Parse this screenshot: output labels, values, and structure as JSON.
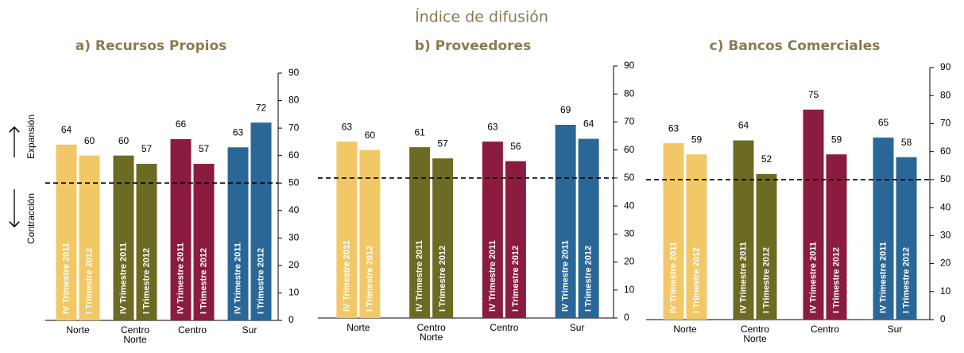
{
  "subtitle": "Índice de difusión",
  "annotations": {
    "up": "Expansión",
    "down": "Contracción"
  },
  "chart_data": [
    {
      "type": "bar",
      "title": "a) Recursos Propios",
      "categories": [
        "Norte",
        "Centro Norte",
        "Centro",
        "Sur"
      ],
      "colors": [
        "#f2c867",
        "#6b6b23",
        "#8c1c3f",
        "#2a6797"
      ],
      "series": [
        {
          "name": "IV Trimestre 2011",
          "values": [
            64,
            60,
            66,
            63
          ]
        },
        {
          "name": "I Trimestre 2012",
          "values": [
            60,
            57,
            57,
            72
          ]
        }
      ],
      "ylim": [
        0,
        90
      ],
      "yticks": [
        0,
        10,
        20,
        30,
        40,
        50,
        60,
        70,
        80,
        90
      ],
      "reference_line": 50
    },
    {
      "type": "bar",
      "title": "b) Proveedores",
      "categories": [
        "Norte",
        "Centro Norte",
        "Centro",
        "Sur"
      ],
      "colors": [
        "#f2c867",
        "#6b6b23",
        "#8c1c3f",
        "#2a6797"
      ],
      "series": [
        {
          "name": "IV Trimestre 2011",
          "values": [
            63,
            61,
            63,
            69
          ]
        },
        {
          "name": "I Trimestre 2012",
          "values": [
            60,
            57,
            56,
            64
          ]
        }
      ],
      "ylim": [
        0,
        90
      ],
      "yticks": [
        0,
        10,
        20,
        30,
        40,
        50,
        60,
        70,
        80,
        90
      ],
      "reference_line": 50
    },
    {
      "type": "bar",
      "title": "c) Bancos Comerciales",
      "categories": [
        "Norte",
        "Centro Norte",
        "Centro",
        "Sur"
      ],
      "colors": [
        "#f2c867",
        "#6b6b23",
        "#8c1c3f",
        "#2a6797"
      ],
      "series": [
        {
          "name": "IV Trimestre 2011",
          "values": [
            63,
            64,
            75,
            65
          ]
        },
        {
          "name": "I Trimestre 2012",
          "values": [
            59,
            52,
            59,
            58
          ]
        }
      ],
      "ylim": [
        0,
        90
      ],
      "yticks": [
        0,
        10,
        20,
        30,
        40,
        50,
        60,
        70,
        80,
        90
      ],
      "reference_line": 50
    }
  ]
}
